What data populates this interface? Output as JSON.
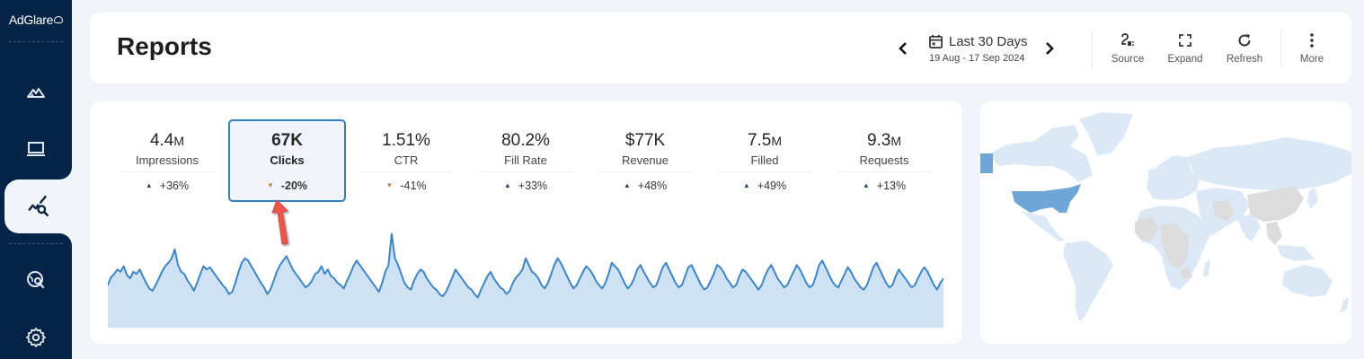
{
  "sidebar": {
    "logo": "AdGlare",
    "items": [
      {
        "name": "campaigns",
        "icon": "mountains-icon",
        "active": false
      },
      {
        "name": "devices",
        "icon": "laptop-icon",
        "active": false
      },
      {
        "name": "reports",
        "icon": "analytics-search-icon",
        "active": true
      },
      {
        "name": "global-search",
        "icon": "globe-search-icon",
        "active": false
      },
      {
        "name": "settings",
        "icon": "gear-icon",
        "active": false
      }
    ]
  },
  "header": {
    "title": "Reports",
    "date_range": {
      "label": "Last 30 Days",
      "sub": "19 Aug - 17 Sep 2024"
    },
    "tools": [
      {
        "label": "Source",
        "icon": "plug-icon"
      },
      {
        "label": "Expand",
        "icon": "expand-icon"
      },
      {
        "label": "Refresh",
        "icon": "refresh-icon"
      },
      {
        "label": "More",
        "icon": "more-vertical-icon"
      }
    ]
  },
  "metrics": [
    {
      "value": "4.4",
      "suffix": "M",
      "label": "Impressions",
      "change": "+36%",
      "direction": "up",
      "selected": false
    },
    {
      "value": "67K",
      "suffix": "",
      "label": "Clicks",
      "change": "-20%",
      "direction": "down",
      "selected": true
    },
    {
      "value": "1.51%",
      "suffix": "",
      "label": "CTR",
      "change": "-41%",
      "direction": "down",
      "selected": false
    },
    {
      "value": "80.2%",
      "suffix": "",
      "label": "Fill Rate",
      "change": "+33%",
      "direction": "up",
      "selected": false
    },
    {
      "value": "$77K",
      "suffix": "",
      "label": "Revenue",
      "change": "+48%",
      "direction": "up",
      "selected": false
    },
    {
      "value": "7.5",
      "suffix": "M",
      "label": "Filled",
      "change": "+49%",
      "direction": "up",
      "selected": false
    },
    {
      "value": "9.3",
      "suffix": "M",
      "label": "Requests",
      "change": "+13%",
      "direction": "up",
      "selected": false
    }
  ],
  "colors": {
    "sidebar_bg": "#062448",
    "page_bg": "#f1f5fa",
    "accent": "#2f7fc9",
    "line": "#3a86cc",
    "area": "#cfe2f3",
    "up": "#2a4a6a",
    "down": "#c47f4b",
    "annotation_arrow": "#f0554a",
    "map_highlight": "#6fa6d8",
    "map_base": "#dbe9f6",
    "map_nodata": "#dcdcdc"
  },
  "chart_data": {
    "type": "area",
    "title": "Clicks (hourly, last 30 days)",
    "xlabel": "",
    "ylabel": "",
    "grid": false,
    "values": [
      38,
      45,
      48,
      52,
      50,
      55,
      47,
      44,
      50,
      48,
      52,
      46,
      40,
      35,
      33,
      38,
      44,
      50,
      55,
      58,
      62,
      70,
      56,
      50,
      48,
      42,
      38,
      33,
      40,
      48,
      55,
      52,
      54,
      50,
      46,
      42,
      38,
      35,
      30,
      32,
      40,
      50,
      58,
      62,
      60,
      55,
      50,
      45,
      40,
      36,
      30,
      34,
      42,
      50,
      56,
      60,
      64,
      58,
      52,
      48,
      44,
      40,
      36,
      38,
      42,
      48,
      50,
      55,
      48,
      52,
      46,
      44,
      40,
      38,
      35,
      42,
      48,
      55,
      60,
      56,
      52,
      48,
      44,
      40,
      36,
      32,
      40,
      50,
      56,
      84,
      62,
      56,
      48,
      40,
      36,
      34,
      42,
      48,
      52,
      50,
      44,
      40,
      36,
      34,
      30,
      28,
      32,
      38,
      45,
      52,
      48,
      44,
      40,
      36,
      34,
      30,
      27,
      34,
      40,
      46,
      50,
      44,
      40,
      36,
      34,
      30,
      33,
      40,
      45,
      48,
      52,
      62,
      56,
      50,
      48,
      44,
      38,
      35,
      40,
      48,
      56,
      62,
      58,
      52,
      46,
      40,
      35,
      38,
      44,
      50,
      55,
      52,
      48,
      42,
      38,
      35,
      40,
      48,
      58,
      55,
      52,
      46,
      40,
      35,
      38,
      44,
      52,
      56,
      50,
      45,
      40,
      36,
      38,
      46,
      54,
      58,
      52,
      46,
      40,
      36,
      38,
      46,
      54,
      56,
      50,
      44,
      38,
      34,
      36,
      42,
      48,
      56,
      54,
      50,
      44,
      40,
      36,
      38,
      46,
      52,
      50,
      46,
      42,
      38,
      34,
      38,
      46,
      52,
      56,
      50,
      44,
      40,
      36,
      38,
      44,
      50,
      56,
      52,
      46,
      40,
      36,
      38,
      46,
      56,
      60,
      54,
      48,
      42,
      38,
      36,
      42,
      48,
      54,
      50,
      44,
      40,
      36,
      34,
      38,
      46,
      54,
      58,
      52,
      46,
      40,
      36,
      38,
      46,
      52,
      48,
      44,
      40,
      36,
      38,
      44,
      50,
      54,
      50,
      44,
      38,
      34,
      40,
      44
    ]
  },
  "map": {
    "highlighted_regions": [
      "United States",
      "Alaska"
    ],
    "no_data_regions": [
      "China",
      "Iran",
      "Central Africa",
      "West Africa",
      "Southeast Asia"
    ]
  }
}
